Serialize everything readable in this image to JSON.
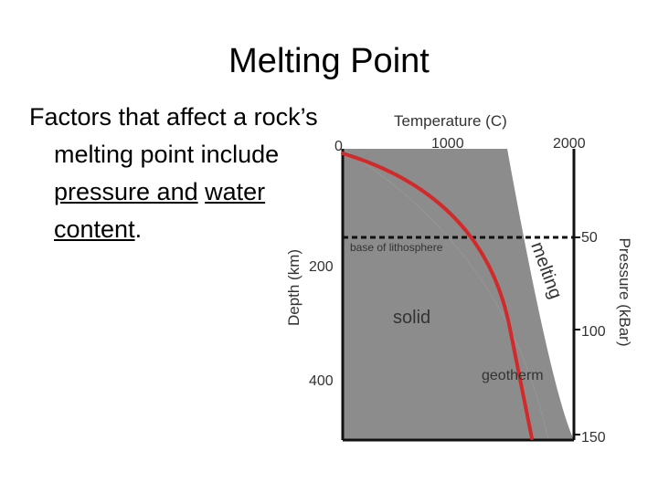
{
  "slide": {
    "title": "Melting Point",
    "body": {
      "text_before": "Factors that affect a rock’s melting point include ",
      "underlined_1": "pressure and",
      "space": " ",
      "underlined_2": "water content",
      "text_after": "."
    }
  },
  "figure": {
    "top_axis_label": "Temperature (C)",
    "top_ticks": [
      "0",
      "1000",
      "2000"
    ],
    "left_axis_label": "Depth (km)",
    "left_ticks": [
      "200",
      "400"
    ],
    "right_axis_label": "Pressure (kBar)",
    "right_ticks": [
      "50",
      "100",
      "150"
    ],
    "region_labels": {
      "base": "base of lithosphere",
      "solid": "solid",
      "melting": "melting",
      "geotherm": "geotherm"
    },
    "colors": {
      "solidus_fill": "#8c8c8c",
      "geotherm_line": "#d22a2a",
      "frame": "#111111",
      "label_text": "#333333"
    }
  }
}
